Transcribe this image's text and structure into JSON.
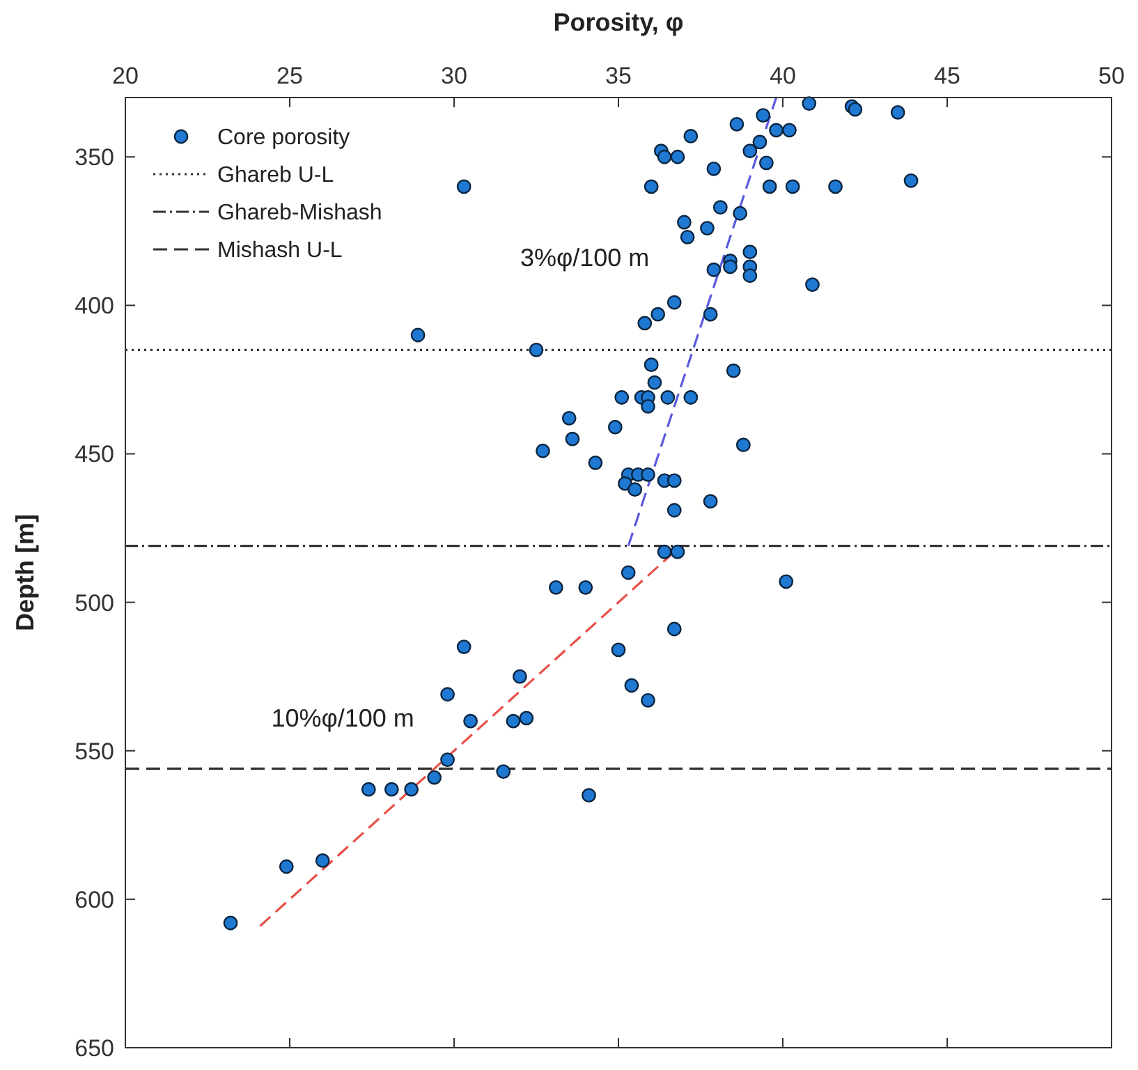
{
  "chart_data": {
    "type": "scatter",
    "xlabel": "Porosity, φ",
    "ylabel": "Depth [m]",
    "xlim": [
      20,
      50
    ],
    "xticks": [
      20,
      25,
      30,
      35,
      40,
      45,
      50
    ],
    "ylim": [
      650,
      330
    ],
    "yticks": [
      350,
      400,
      450,
      500,
      550,
      600,
      650
    ],
    "grid": false,
    "legend": "top left",
    "marker": "circle",
    "series": [
      {
        "name": "Core porosity",
        "color": "#1f78d1",
        "x": [
          40.8,
          42.1,
          42.2,
          43.5,
          39.4,
          38.6,
          39.8,
          40.2,
          37.2,
          39.3,
          36.3,
          36.4,
          36.8,
          39.0,
          39.5,
          37.9,
          43.9,
          30.3,
          36.0,
          39.6,
          40.3,
          41.6,
          38.1,
          38.7,
          37.0,
          37.7,
          37.1,
          39.0,
          38.4,
          39.0,
          38.4,
          37.9,
          39.0,
          40.9,
          36.7,
          37.8,
          36.2,
          35.8,
          28.9,
          32.5,
          36.0,
          38.5,
          36.1,
          35.1,
          35.7,
          35.9,
          35.9,
          36.5,
          37.2,
          33.5,
          33.6,
          34.9,
          32.7,
          38.8,
          34.3,
          35.3,
          35.6,
          35.9,
          35.2,
          35.5,
          36.4,
          36.7,
          36.7,
          37.8,
          36.4,
          36.8,
          35.3,
          33.1,
          34.0,
          40.1,
          36.7,
          30.3,
          35.0,
          32.0,
          29.8,
          35.4,
          35.9,
          30.5,
          31.8,
          32.2,
          29.8,
          31.5,
          29.4,
          27.4,
          28.1,
          28.7,
          34.1,
          24.9,
          26.0,
          23.2
        ],
        "values": [
          332,
          333,
          334,
          335,
          336,
          339,
          341,
          341,
          343,
          345,
          348,
          350,
          350,
          348,
          352,
          354,
          358,
          360,
          360,
          360,
          360,
          360,
          367,
          369,
          372,
          374,
          377,
          382,
          385,
          387,
          387,
          388,
          390,
          393,
          399,
          403,
          403,
          406,
          410,
          415,
          420,
          422,
          426,
          431,
          431,
          431,
          434,
          431,
          431,
          438,
          445,
          441,
          449,
          447,
          453,
          457,
          457,
          457,
          460,
          462,
          459,
          459,
          469,
          466,
          483,
          483,
          490,
          495,
          495,
          493,
          509,
          515,
          516,
          525,
          531,
          528,
          533,
          540,
          540,
          539,
          553,
          557,
          559,
          563,
          563,
          563,
          565,
          589,
          587,
          608
        ]
      },
      {
        "type": "line",
        "color": "#5a5ae0",
        "line_style": "dashed",
        "marker": "none",
        "x": [
          35.3,
          39.8
        ],
        "values": [
          481,
          330
        ]
      },
      {
        "type": "line",
        "color": "#e8504a",
        "line_style": "dashed",
        "marker": "none",
        "x": [
          24.1,
          36.7
        ],
        "values": [
          609,
          483
        ]
      }
    ],
    "ref_lines": [
      {
        "axis": "y",
        "value": 415,
        "label": "Ghareb U-L",
        "color": "#333333",
        "line_style": "dotted"
      },
      {
        "axis": "y",
        "value": 481,
        "label": "Ghareb-Mishash",
        "color": "#333333",
        "line_style": "dashdot"
      },
      {
        "axis": "y",
        "value": 556,
        "label": "Mishash U-L",
        "color": "#333333",
        "line_style": "dashed"
      }
    ],
    "annotations": [
      "3%φ/100 m",
      "10%φ/100 m"
    ]
  }
}
